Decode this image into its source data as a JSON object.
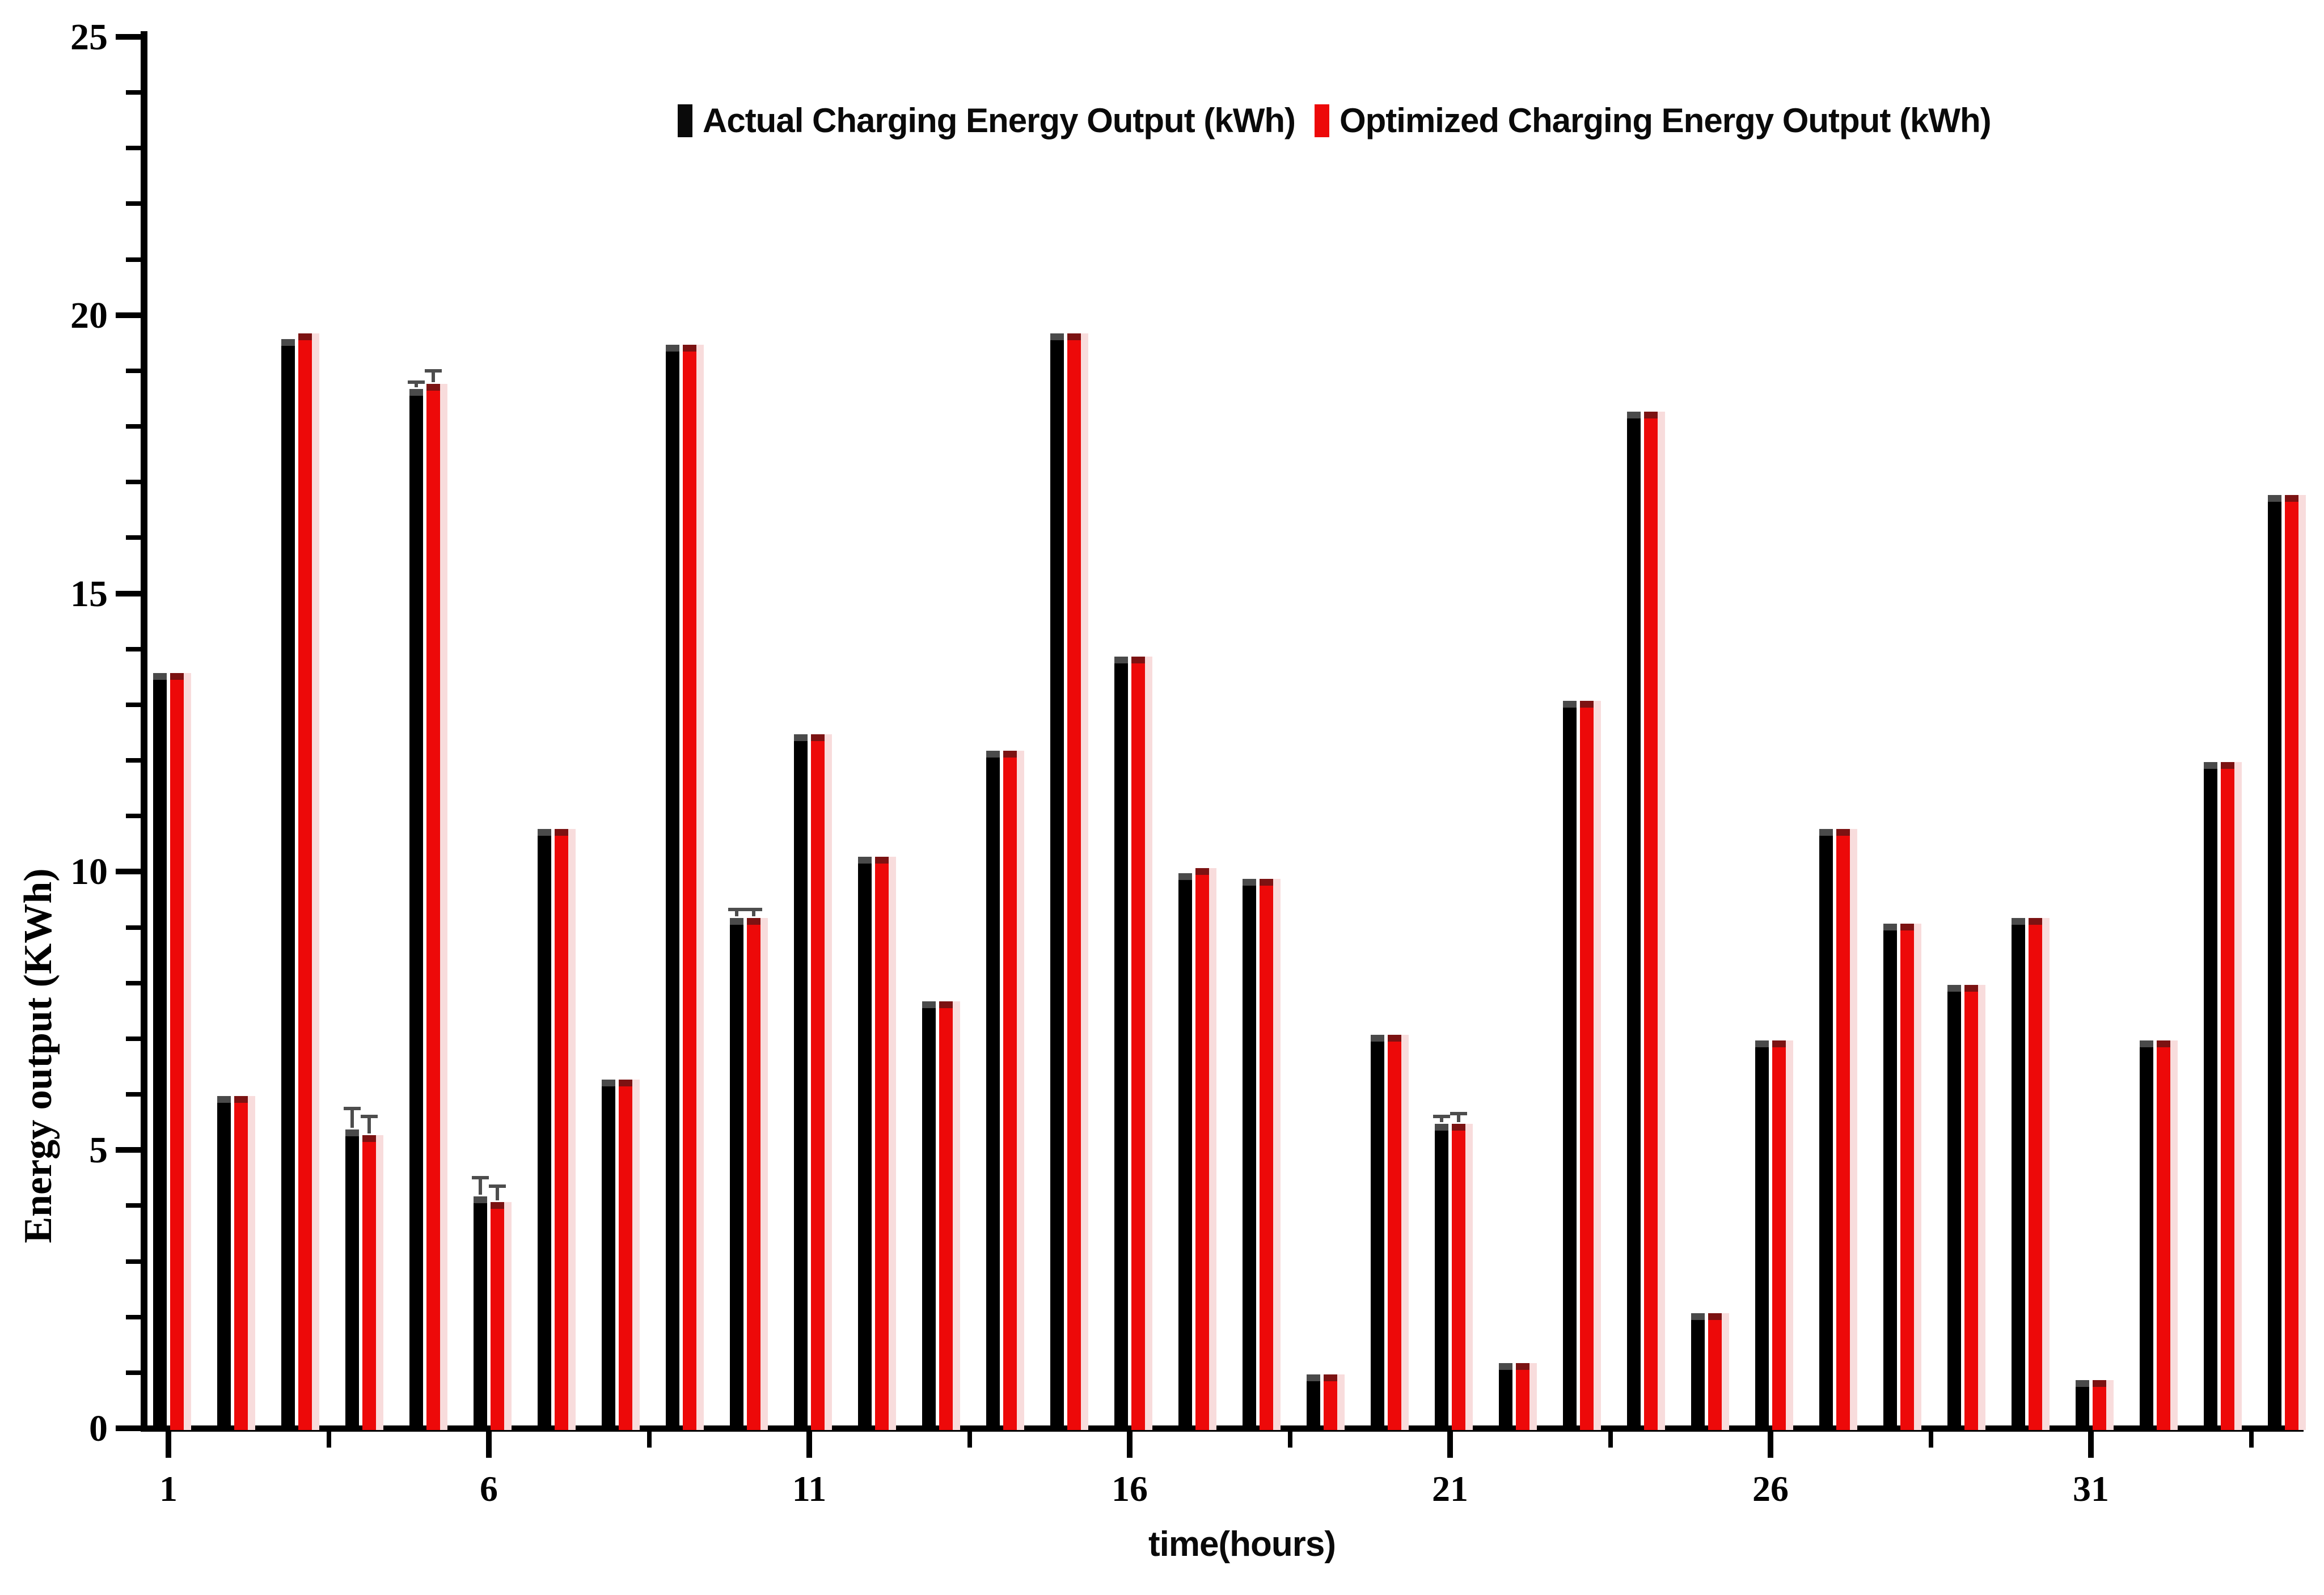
{
  "figure": {
    "y_axis_label": "Energy output (KWh)",
    "x_axis_label": "time(hours)"
  },
  "chart_data": {
    "type": "bar",
    "title": "",
    "xlabel": "time(hours)",
    "ylabel": "Energy output (KWh)",
    "categories": [
      1,
      2,
      3,
      4,
      5,
      6,
      7,
      8,
      9,
      10,
      11,
      12,
      13,
      14,
      15,
      16,
      17,
      18,
      19,
      20,
      21,
      22,
      23,
      24,
      25,
      26,
      27,
      28,
      29,
      30,
      31,
      32,
      33,
      34
    ],
    "x_tick_labels": [
      1,
      6,
      11,
      16,
      21,
      26,
      31
    ],
    "y_ticks": [
      0,
      5,
      10,
      15,
      20,
      25
    ],
    "ylim": [
      0,
      25
    ],
    "grid": false,
    "legend_position": "top-center",
    "series": [
      {
        "name": "Actual Charging Energy Output (kWh)",
        "color": "#000000",
        "values": [
          13.6,
          6.0,
          19.6,
          5.4,
          18.7,
          4.2,
          10.8,
          6.3,
          19.5,
          9.2,
          12.5,
          10.3,
          7.7,
          12.2,
          19.7,
          13.9,
          10.0,
          9.9,
          1.0,
          7.1,
          5.5,
          1.2,
          13.1,
          18.3,
          2.1,
          7.0,
          10.8,
          9.1,
          8.0,
          9.2,
          0.9,
          7.0,
          12.0,
          16.8
        ]
      },
      {
        "name": "Optimized Charging Energy Output (kWh)",
        "color": "#ed0909",
        "values": [
          13.6,
          6.0,
          19.7,
          5.3,
          18.8,
          4.1,
          10.8,
          6.3,
          19.5,
          9.2,
          12.5,
          10.3,
          7.7,
          12.2,
          19.7,
          13.9,
          10.1,
          9.9,
          1.0,
          7.1,
          5.5,
          1.2,
          13.1,
          18.3,
          2.1,
          7.0,
          10.8,
          9.1,
          8.0,
          9.2,
          0.9,
          7.0,
          12.0,
          16.8
        ]
      }
    ],
    "error_bars": {
      "4": [
        0.35,
        0.3
      ],
      "5": [
        0.1,
        0.2
      ],
      "6": [
        0.3,
        0.25
      ],
      "10": [
        0.12,
        0.12
      ],
      "21": [
        0.1,
        0.15
      ]
    }
  }
}
